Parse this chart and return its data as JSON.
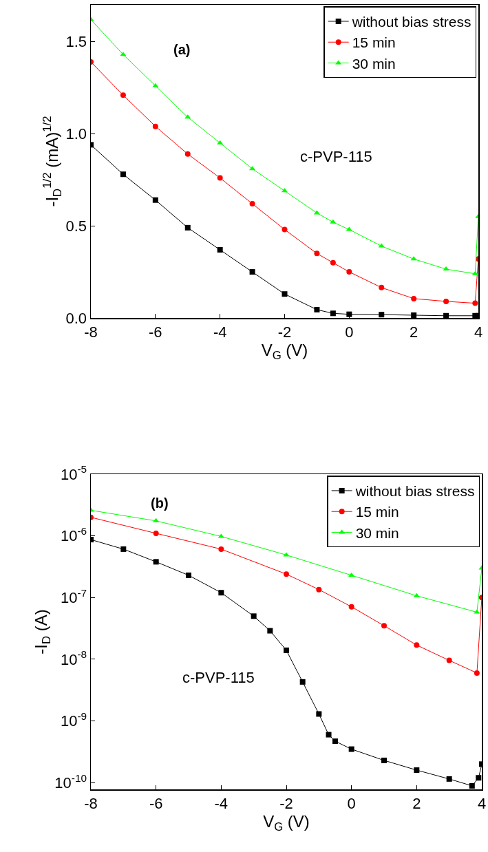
{
  "chart_data": [
    {
      "type": "line",
      "xlabel": "V$_{G}$ (V)",
      "ylabel": "-I$_{D}$$^{1/2}$ (mA)$^{1/2}$",
      "annotations": [
        "(a)",
        "c-PVP-115"
      ],
      "xlim": [
        -8,
        4
      ],
      "xticks": [
        -8,
        -6,
        -4,
        -2,
        0,
        2,
        4
      ],
      "ylim": [
        0,
        1.7
      ],
      "yticks": [
        {
          "value": 0,
          "label": "0.0"
        },
        0.5,
        {
          "value": 1,
          "label": "1.0"
        },
        1.5
      ],
      "grid": false,
      "legend": "top right",
      "line_style": "solid",
      "x": [
        -8,
        -7,
        -6,
        -5,
        -4,
        -3,
        -2,
        -1,
        -0.5,
        0,
        1,
        2,
        3,
        3.9,
        4
      ],
      "series": [
        {
          "name": "without bias stress",
          "color": "#000000",
          "marker": "square",
          "values": [
            0.94,
            0.78,
            0.64,
            0.49,
            0.37,
            0.25,
            0.13,
            0.045,
            0.025,
            0.02,
            0.018,
            0.015,
            0.012,
            0.012,
            0.012
          ]
        },
        {
          "name": "15 min",
          "color": "#ff0000",
          "marker": "circle",
          "values": [
            1.39,
            1.21,
            1.04,
            0.89,
            0.76,
            0.62,
            0.48,
            0.35,
            0.3,
            0.25,
            0.165,
            0.105,
            0.09,
            0.08,
            0.32
          ]
        },
        {
          "name": "30 min",
          "color": "#00ff00",
          "marker": "triangle",
          "values": [
            1.62,
            1.43,
            1.26,
            1.09,
            0.95,
            0.81,
            0.69,
            0.57,
            0.52,
            0.48,
            0.39,
            0.32,
            0.265,
            0.24,
            0.55
          ]
        }
      ]
    },
    {
      "type": "line",
      "xlabel": "V$_{G}$ (V)",
      "ylabel": "-I$_{D}$ (A)",
      "annotations": [
        "(b)",
        "c-PVP-115"
      ],
      "log": "y",
      "xlim": [
        -8,
        4
      ],
      "xticks": [
        -8,
        -6,
        -4,
        -2,
        0,
        2,
        4
      ],
      "ylim": [
        7.8e-11,
        1e-05
      ],
      "yticks": [
        {
          "value": 1e-10,
          "label": "10$^{-10}$"
        },
        {
          "value": 1e-09,
          "label": "10$^{-9}$"
        },
        {
          "value": 1e-08,
          "label": "10$^{-8}$"
        },
        {
          "value": 1e-07,
          "label": "10$^{-7}$"
        },
        {
          "value": 1e-06,
          "label": "10$^{-6}$"
        },
        {
          "value": 1e-05,
          "label": "10$^{-5}$"
        }
      ],
      "grid": false,
      "legend": "top right",
      "line_style": "solid",
      "series": [
        {
          "name": "without bias stress",
          "color": "#000000",
          "marker": "square",
          "x": [
            -8,
            -7,
            -6,
            -5,
            -4,
            -3,
            -2.5,
            -2,
            -1.5,
            -1,
            -0.7,
            -0.5,
            0,
            1,
            2,
            3,
            3.7,
            3.9,
            4
          ],
          "values": [
            8.7e-07,
            6.1e-07,
            3.8e-07,
            2.3e-07,
            1.2e-07,
            5e-08,
            2.9e-08,
            1.4e-08,
            4.3e-09,
            1.3e-09,
            6e-10,
            4.7e-10,
            3.5e-10,
            2.3e-10,
            1.6e-10,
            1.15e-10,
            8.9e-11,
            1.2e-10,
            2e-10
          ]
        },
        {
          "name": "15 min",
          "color": "#ff0000",
          "marker": "circle",
          "x": [
            -8,
            -6,
            -4,
            -2,
            -1,
            0,
            1,
            2,
            3,
            3.85,
            4
          ],
          "values": [
            2e-06,
            1.1e-06,
            6.1e-07,
            2.4e-07,
            1.35e-07,
            7.1e-08,
            3.5e-08,
            1.7e-08,
            9.6e-09,
            6e-09,
            1e-07
          ]
        },
        {
          "name": "30 min",
          "color": "#00ff00",
          "marker": "triangle",
          "x": [
            -8,
            -6,
            -4,
            -2,
            0,
            2,
            3.85,
            4
          ],
          "values": [
            2.6e-06,
            1.75e-06,
            9.8e-07,
            4.9e-07,
            2.3e-07,
            1.07e-07,
            5.8e-08,
            3e-07
          ]
        }
      ]
    }
  ]
}
